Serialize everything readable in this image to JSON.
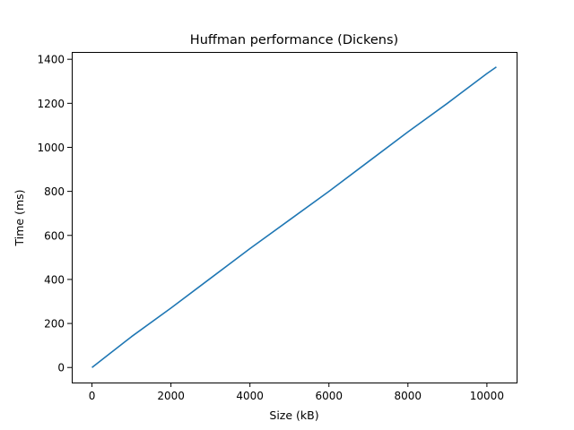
{
  "chart_data": {
    "type": "line",
    "title": "Huffman performance (Dickens)",
    "xlabel": "Size (kB)",
    "ylabel": "Time (ms)",
    "xlim": [
      -512,
      10752
    ],
    "ylim": [
      -68.25,
      1433.25
    ],
    "xticks": [
      0,
      2000,
      4000,
      6000,
      8000,
      10000
    ],
    "yticks": [
      0,
      200,
      400,
      600,
      800,
      1000,
      1200,
      1400
    ],
    "grid": false,
    "legend": "none",
    "series": [
      {
        "color": "#1f77b4",
        "x": [
          0,
          500,
          1000,
          2000,
          3000,
          4000,
          5000,
          6000,
          7000,
          8000,
          9000,
          10000,
          10240
        ],
        "y": [
          0,
          70,
          140,
          270,
          405,
          540,
          670,
          800,
          935,
          1070,
          1200,
          1335,
          1365
        ]
      }
    ]
  }
}
